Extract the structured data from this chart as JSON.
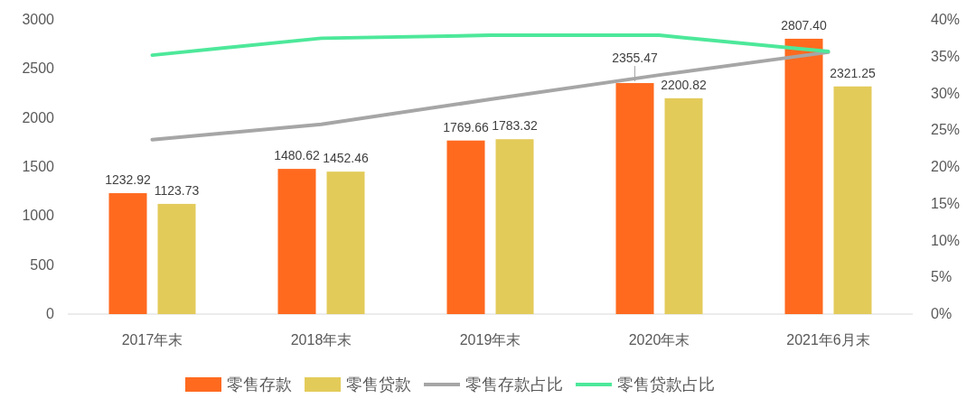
{
  "chart_data": {
    "type": "bar",
    "categories": [
      "2017年末",
      "2018年末",
      "2019年末",
      "2020年末",
      "2021年6月末"
    ],
    "series": [
      {
        "name": "零售存款",
        "color": "#ff6a1f",
        "values": [
          1232.92,
          1480.62,
          1769.66,
          2355.47,
          2807.4
        ],
        "value_labels": [
          "1232.92",
          "1480.62",
          "1769.66",
          "2355.47",
          "2807.40"
        ]
      },
      {
        "name": "零售贷款",
        "color": "#e3cb5a",
        "values": [
          1123.73,
          1452.46,
          1783.32,
          2200.82,
          2321.25
        ],
        "value_labels": [
          "1123.73",
          "1452.46",
          "1783.32",
          "2200.82",
          "2321.25"
        ]
      },
      {
        "name": "零售存款占比",
        "type": "line",
        "axis": "y2",
        "color": "#a6a6a6",
        "values": [
          23.7,
          25.8,
          29.2,
          32.5,
          35.6
        ]
      },
      {
        "name": "零售贷款占比",
        "type": "line",
        "axis": "y2",
        "color": "#4de89a",
        "values": [
          35.2,
          37.5,
          37.9,
          37.9,
          35.7
        ]
      }
    ],
    "ylim": [
      0,
      3000
    ],
    "yticks": [
      0,
      500,
      1000,
      1500,
      2000,
      2500,
      3000
    ],
    "y2lim": [
      0,
      40
    ],
    "y2ticks": [
      {
        "value": 0,
        "label": "0%"
      },
      {
        "value": 5,
        "label": "5%"
      },
      {
        "value": 10,
        "label": "10%"
      },
      {
        "value": 15,
        "label": "15%"
      },
      {
        "value": 20,
        "label": "20%"
      },
      {
        "value": 25,
        "label": "25%"
      },
      {
        "value": 30,
        "label": "30%"
      },
      {
        "value": 35,
        "label": "35%"
      },
      {
        "value": 40,
        "label": "40%"
      }
    ],
    "legend": "bottom"
  }
}
